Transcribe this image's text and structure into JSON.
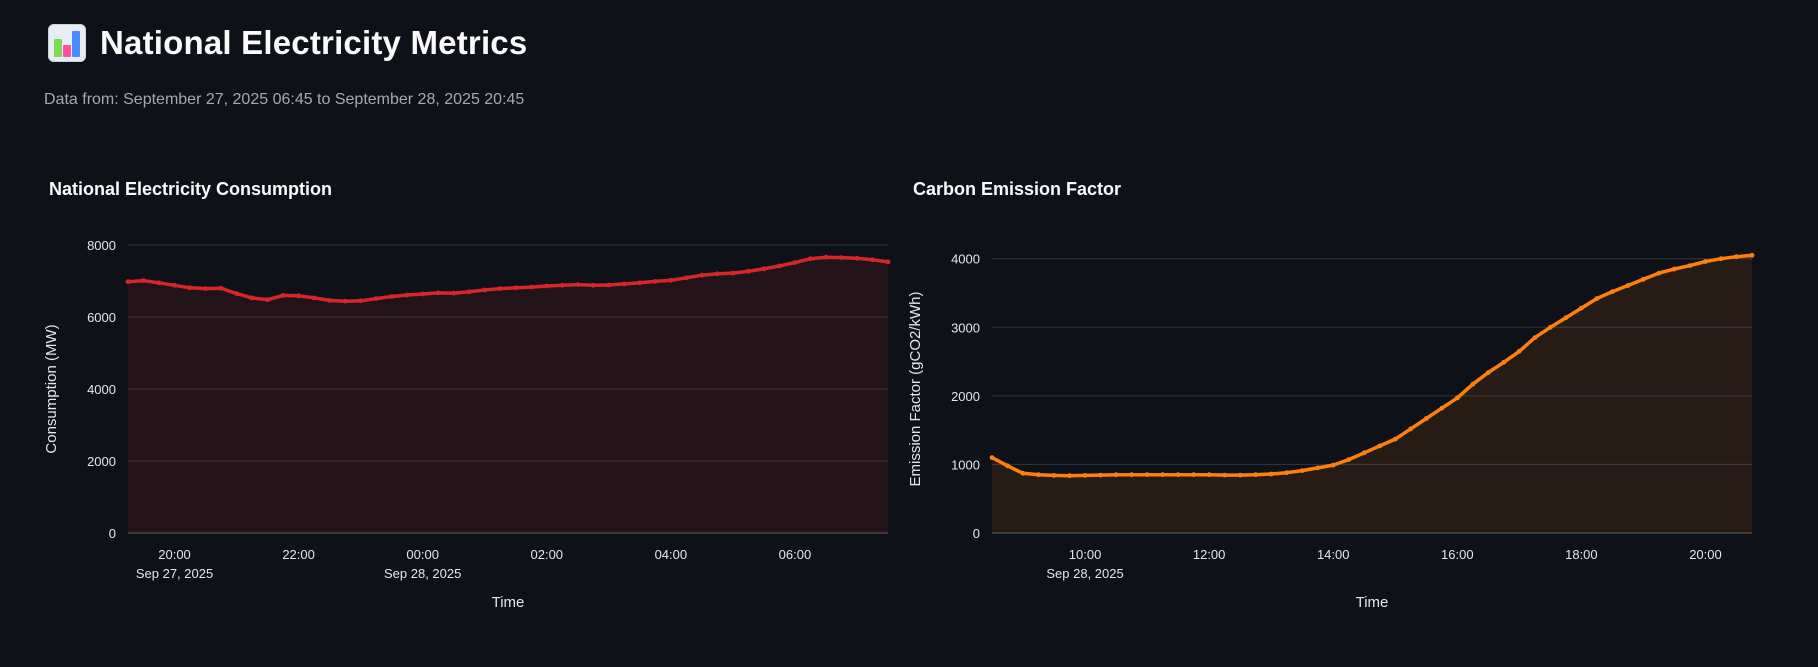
{
  "header": {
    "title": "National Electricity Metrics",
    "icon": "bar-chart-icon",
    "subtitle": "Data from: September 27, 2025 06:45 to September 28, 2025 20:45"
  },
  "colors": {
    "background": "#0e1117",
    "consumption_line": "#d62728",
    "emission_line": "#ff7f0e",
    "gridline": "#33373f"
  },
  "chart_data": [
    {
      "type": "area",
      "title": "National Electricity Consumption",
      "xlabel": "Time",
      "ylabel": "Consumption (MW)",
      "ylim": [
        0,
        8000
      ],
      "yticks": [
        0,
        2000,
        4000,
        6000,
        8000
      ],
      "xrange_hours": [
        19.25,
        31.5
      ],
      "xticks": [
        {
          "h": 20,
          "label": "20:00",
          "sub": "Sep 27, 2025"
        },
        {
          "h": 22,
          "label": "22:00",
          "sub": ""
        },
        {
          "h": 24,
          "label": "00:00",
          "sub": "Sep 28, 2025"
        },
        {
          "h": 26,
          "label": "02:00",
          "sub": ""
        },
        {
          "h": 28,
          "label": "04:00",
          "sub": ""
        },
        {
          "h": 30,
          "label": "06:00",
          "sub": ""
        }
      ],
      "grid": true,
      "legend": "none",
      "series": [
        {
          "color": "#d62728",
          "x": [
            19.25,
            19.5,
            19.75,
            20,
            20.25,
            20.5,
            20.75,
            21,
            21.25,
            21.5,
            21.75,
            22,
            22.25,
            22.5,
            22.75,
            23,
            23.25,
            23.5,
            23.75,
            24,
            24.25,
            24.5,
            24.75,
            25,
            25.25,
            25.5,
            25.75,
            26,
            26.25,
            26.5,
            26.75,
            27,
            27.25,
            27.5,
            27.75,
            28,
            28.25,
            28.5,
            28.75,
            29,
            29.25,
            29.5,
            29.75,
            30,
            30.25,
            30.5,
            30.75,
            31,
            31.25,
            31.5
          ],
          "y": [
            6980,
            7010,
            6950,
            6880,
            6810,
            6790,
            6800,
            6650,
            6530,
            6480,
            6600,
            6590,
            6530,
            6460,
            6440,
            6450,
            6510,
            6570,
            6610,
            6640,
            6670,
            6660,
            6700,
            6750,
            6790,
            6810,
            6830,
            6860,
            6880,
            6900,
            6880,
            6890,
            6920,
            6950,
            6990,
            7020,
            7090,
            7160,
            7200,
            7220,
            7270,
            7340,
            7420,
            7510,
            7620,
            7660,
            7650,
            7630,
            7590,
            7530
          ]
        }
      ]
    },
    {
      "type": "area",
      "title": "Carbon Emission Factor",
      "xlabel": "Time",
      "ylabel": "Emission Factor (gCO2/kWh)",
      "ylim": [
        0,
        4200
      ],
      "yticks": [
        0,
        1000,
        2000,
        3000,
        4000
      ],
      "xrange_hours": [
        32.5,
        44.75
      ],
      "xticks": [
        {
          "h": 34,
          "label": "10:00",
          "sub": "Sep 28, 2025"
        },
        {
          "h": 36,
          "label": "12:00",
          "sub": ""
        },
        {
          "h": 38,
          "label": "14:00",
          "sub": ""
        },
        {
          "h": 40,
          "label": "16:00",
          "sub": ""
        },
        {
          "h": 42,
          "label": "18:00",
          "sub": ""
        },
        {
          "h": 44,
          "label": "20:00",
          "sub": ""
        }
      ],
      "grid": true,
      "legend": "none",
      "series": [
        {
          "color": "#ff7f0e",
          "x": [
            32.5,
            32.75,
            33,
            33.25,
            33.5,
            33.75,
            34,
            34.25,
            34.5,
            34.75,
            35,
            35.25,
            35.5,
            35.75,
            36,
            36.25,
            36.5,
            36.75,
            37,
            37.25,
            37.5,
            37.75,
            38,
            38.25,
            38.5,
            38.75,
            39,
            39.25,
            39.5,
            39.75,
            40,
            40.25,
            40.5,
            40.75,
            41,
            41.25,
            41.5,
            41.75,
            42,
            42.25,
            42.5,
            42.75,
            43,
            43.25,
            43.5,
            43.75,
            44,
            44.25,
            44.5,
            44.75
          ],
          "y": [
            1100,
            980,
            870,
            850,
            840,
            835,
            840,
            845,
            850,
            850,
            850,
            850,
            850,
            850,
            850,
            845,
            845,
            850,
            860,
            880,
            910,
            950,
            990,
            1070,
            1170,
            1270,
            1370,
            1520,
            1670,
            1820,
            1970,
            2170,
            2340,
            2490,
            2650,
            2850,
            3000,
            3140,
            3280,
            3420,
            3520,
            3610,
            3700,
            3790,
            3850,
            3900,
            3960,
            4000,
            4030,
            4050
          ]
        }
      ]
    }
  ]
}
